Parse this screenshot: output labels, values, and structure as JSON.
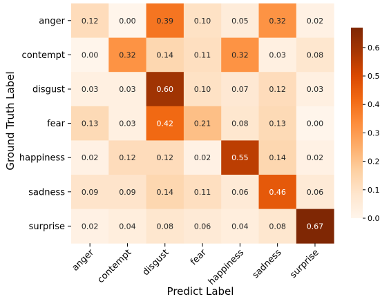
{
  "chart_data": {
    "type": "heatmap",
    "title": "",
    "xlabel": "Predict Label",
    "ylabel": "Ground Truth Label",
    "x_categories": [
      "anger",
      "contempt",
      "disgust",
      "fear",
      "happiness",
      "sadness",
      "surprise"
    ],
    "y_categories": [
      "anger",
      "contempt",
      "disgust",
      "fear",
      "happiness",
      "sadness",
      "surprise"
    ],
    "values": [
      [
        0.12,
        0.0,
        0.39,
        0.1,
        0.05,
        0.32,
        0.02
      ],
      [
        0.0,
        0.32,
        0.14,
        0.11,
        0.32,
        0.03,
        0.08
      ],
      [
        0.03,
        0.03,
        0.6,
        0.1,
        0.07,
        0.12,
        0.03
      ],
      [
        0.13,
        0.03,
        0.42,
        0.21,
        0.08,
        0.13,
        0.0
      ],
      [
        0.02,
        0.12,
        0.12,
        0.02,
        0.55,
        0.14,
        0.02
      ],
      [
        0.09,
        0.09,
        0.14,
        0.11,
        0.06,
        0.46,
        0.06
      ],
      [
        0.02,
        0.04,
        0.08,
        0.06,
        0.04,
        0.08,
        0.67
      ]
    ],
    "value_format": "0.00",
    "colorbar": {
      "range": [
        0.0,
        0.67
      ],
      "ticks": [
        "0.0",
        "0.1",
        "0.2",
        "0.3",
        "0.4",
        "0.5",
        "0.6"
      ],
      "colormap": "Oranges",
      "colors": [
        "#fff5eb",
        "#fee6ce",
        "#fdd0a2",
        "#fdae6b",
        "#fd8d3c",
        "#f16913",
        "#d94801",
        "#a63603",
        "#7f2704"
      ]
    },
    "grid": false,
    "legend": "colorbar-right"
  }
}
